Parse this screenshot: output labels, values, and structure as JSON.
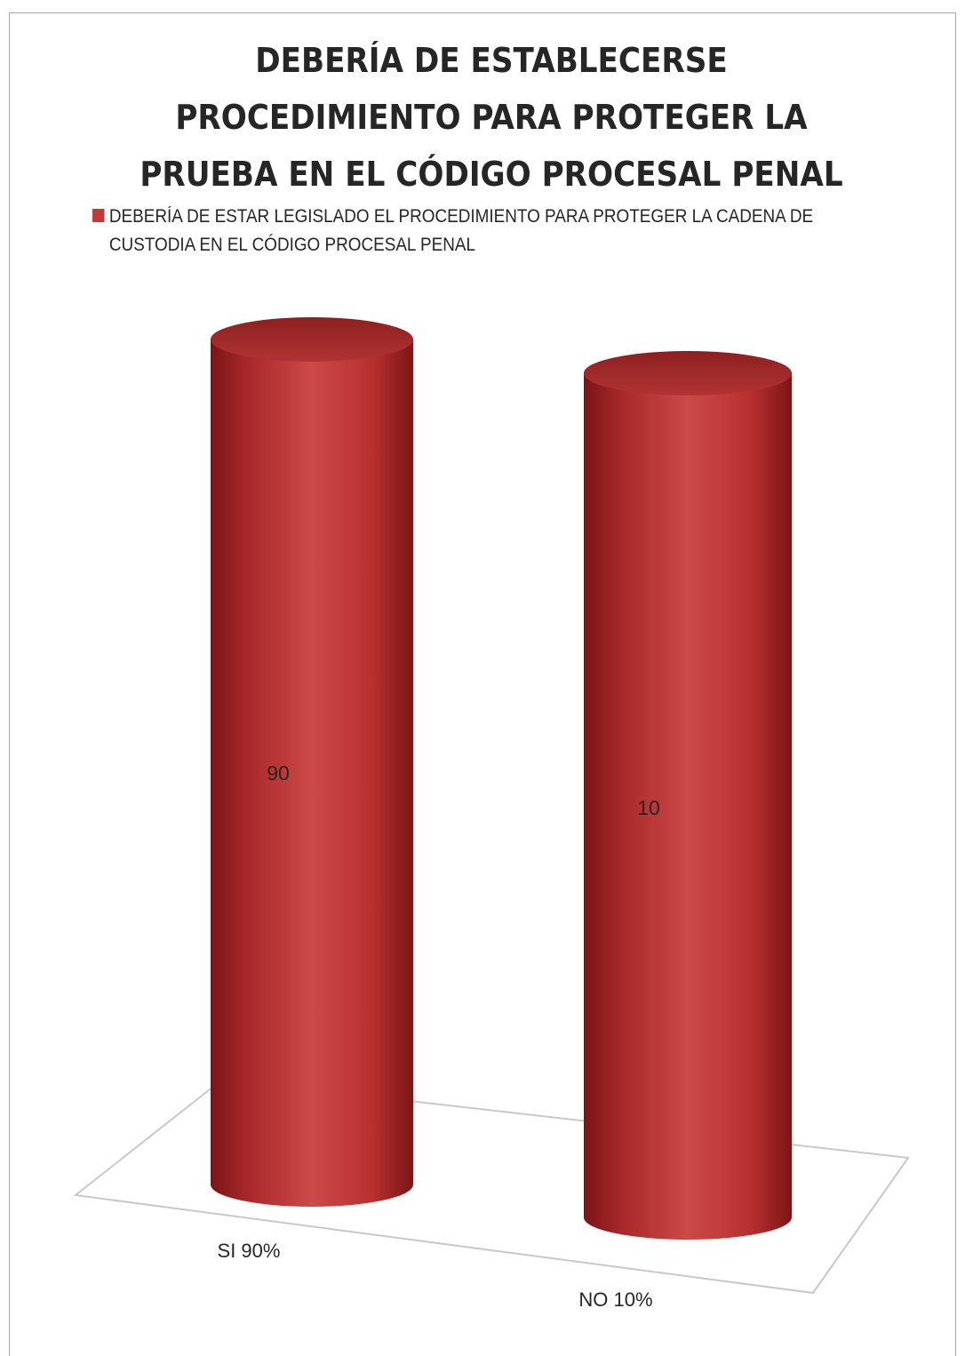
{
  "chart_data": {
    "type": "bar",
    "title": "DEBERÍA DE ESTABLECERSE PROCEDIMIENTO PARA PROTEGER LA PRUEBA EN EL CÓDIGO PROCESAL PENAL",
    "title_lines": [
      "DEBERÍA DE ESTABLECERSE",
      "PROCEDIMIENTO PARA PROTEGER LA",
      "PRUEBA EN EL CÓDIGO PROCESAL PENAL"
    ],
    "categories": [
      "SI 90%",
      "NO 10%"
    ],
    "series": [
      {
        "name": "DEBERÍA DE ESTAR LEGISLADO EL PROCEDIMIENTO PARA PROTEGER LA CADENA DE CUSTODIA EN EL CÓDIGO PROCESAL PENAL",
        "values": [
          90,
          10
        ],
        "color": "#c0393b"
      }
    ],
    "data_labels": [
      "90",
      "10"
    ],
    "legend": {
      "position": "top",
      "lines": [
        "DEBERÍA DE ESTAR LEGISLADO EL PROCEDIMIENTO PARA PROTEGER LA CADENA DE",
        "CUSTODIA EN EL CÓDIGO PROCESAL PENAL"
      ]
    },
    "bar_shape": "cylinder",
    "style": "3d",
    "grid": false,
    "xlabel": "",
    "ylabel": ""
  }
}
